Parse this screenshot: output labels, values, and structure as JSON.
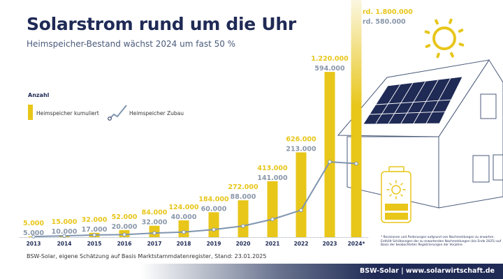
{
  "title": "Solarstrom rund um die Uhr",
  "subtitle": "Heimspeicher-Bestand wächst 2024 um fast 50 %",
  "source": "BSW-Solar, eigene Schätzung auf Basis Marktstammdatenregister, Stand: 23.01.2025",
  "footnote": "* Revisionen und Änderungen aufgrund von Nachmeldungen zu erwarten. Enthält Schätzungen der zu erwartenden Nachmeldungen (bis Ende 2025) auf Basis der beobachteten Registrierungen der Vorjahre.",
  "footer": "BSW-Solar | www.solarwirtschaft.de",
  "colors": {
    "bar": "#e8c61a",
    "line": "#7f95b0",
    "navy": "#1f2a55",
    "label_grey": "#8a97aa"
  },
  "chart_data": {
    "type": "bar+line",
    "ylabel": "Anzahl",
    "legend_position": "top-left",
    "grid": false,
    "categories": [
      "2013",
      "2014",
      "2015",
      "2016",
      "2017",
      "2018",
      "2019",
      "2020",
      "2021",
      "2022",
      "2023",
      "2024*"
    ],
    "series": [
      {
        "name": "Heimspeicher kumuliert",
        "type": "bar",
        "values": [
          5000,
          15000,
          32000,
          52000,
          84000,
          124000,
          184000,
          272000,
          413000,
          626000,
          1220000,
          1800000
        ],
        "labels": [
          "5.000",
          "15.000",
          "32.000",
          "52.000",
          "84.000",
          "124.000",
          "184.000",
          "272.000",
          "413.000",
          "626.000",
          "1.220.000",
          "rd. 1.800.000"
        ]
      },
      {
        "name": "Heimspeicher Zubau",
        "type": "line",
        "values": [
          5000,
          10000,
          17000,
          20000,
          32000,
          40000,
          60000,
          88000,
          141000,
          213000,
          594000,
          580000
        ],
        "labels": [
          "5.000",
          "10.000",
          "17.000",
          "20.000",
          "32.000",
          "40.000",
          "60.000",
          "88.000",
          "141.000",
          "213.000",
          "594.000",
          "rd. 580.000"
        ]
      }
    ]
  }
}
